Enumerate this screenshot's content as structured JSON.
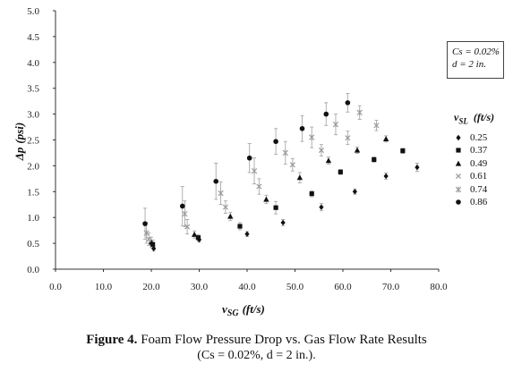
{
  "chart_data": {
    "type": "scatter",
    "x_axis": {
      "label_main": "v",
      "label_sub": "SG",
      "label_unit": "(ft/s)",
      "min": 0,
      "max": 80,
      "step": 10,
      "ticks": [
        "0.0",
        "10.0",
        "20.0",
        "30.0",
        "40.0",
        "50.0",
        "60.0",
        "70.0",
        "80.0"
      ]
    },
    "y_axis": {
      "label_main": "Δp",
      "label_unit": "(psi)",
      "min": 0,
      "max": 5,
      "step": 0.5,
      "ticks": [
        "0.0",
        "0.5",
        "1.0",
        "1.5",
        "2.0",
        "2.5",
        "3.0",
        "3.5",
        "4.0",
        "4.5",
        "5.0"
      ]
    },
    "grid": false,
    "legend_position": "right",
    "note": {
      "line1": "Cs = 0.02%",
      "line2": "d = 2 in."
    },
    "legend_title_main": "v",
    "legend_title_sub": "SL",
    "legend_title_unit": "(ft/s)",
    "series": [
      {
        "name": "0.25",
        "marker": "diamond",
        "color": "#111111",
        "points": [
          [
            20.5,
            0.4
          ],
          [
            30.0,
            0.57
          ],
          [
            40.0,
            0.68
          ],
          [
            47.5,
            0.9
          ],
          [
            55.5,
            1.2
          ],
          [
            62.5,
            1.5
          ],
          [
            69.0,
            1.8
          ],
          [
            75.5,
            1.97
          ]
        ],
        "errors": [
          0.05,
          0.05,
          0.05,
          0.06,
          0.07,
          0.05,
          0.06,
          0.08
        ]
      },
      {
        "name": "0.37",
        "marker": "square",
        "color": "#111111",
        "points": [
          [
            20.3,
            0.48
          ],
          [
            29.8,
            0.61
          ],
          [
            38.5,
            0.83
          ],
          [
            46.0,
            1.19
          ],
          [
            53.5,
            1.46
          ],
          [
            59.5,
            1.88
          ],
          [
            66.5,
            2.12
          ],
          [
            72.5,
            2.29
          ]
        ],
        "errors": [
          0.08,
          0.06,
          0.07,
          0.12,
          0.06,
          0.05,
          0.05,
          0.05
        ]
      },
      {
        "name": "0.49",
        "marker": "triangle",
        "color": "#111111",
        "points": [
          [
            20.0,
            0.52
          ],
          [
            29.0,
            0.67
          ],
          [
            36.5,
            1.02
          ],
          [
            44.0,
            1.35
          ],
          [
            51.0,
            1.77
          ],
          [
            57.0,
            2.1
          ],
          [
            63.0,
            2.3
          ],
          [
            69.0,
            2.52
          ]
        ],
        "errors": [
          0.1,
          0.07,
          0.08,
          0.08,
          0.1,
          0.07,
          0.06,
          0.06
        ]
      },
      {
        "name": "0.61",
        "marker": "x",
        "color": "#999999",
        "points": [
          [
            19.5,
            0.58
          ],
          [
            27.5,
            0.82
          ],
          [
            35.5,
            1.2
          ],
          [
            42.5,
            1.6
          ],
          [
            49.5,
            2.02
          ],
          [
            55.5,
            2.3
          ],
          [
            61.0,
            2.54
          ],
          [
            67.0,
            2.78
          ]
        ],
        "errors": [
          0.12,
          0.14,
          0.12,
          0.15,
          0.12,
          0.11,
          0.13,
          0.1
        ]
      },
      {
        "name": "0.74",
        "marker": "star",
        "color": "#999999",
        "points": [
          [
            19.0,
            0.7
          ],
          [
            27.0,
            1.07
          ],
          [
            34.5,
            1.47
          ],
          [
            41.5,
            1.9
          ],
          [
            48.0,
            2.25
          ],
          [
            53.5,
            2.55
          ],
          [
            58.5,
            2.8
          ],
          [
            63.5,
            3.03
          ]
        ],
        "errors": [
          0.2,
          0.25,
          0.22,
          0.25,
          0.22,
          0.2,
          0.2,
          0.13
        ]
      },
      {
        "name": "0.86",
        "marker": "circle",
        "color": "#111111",
        "points": [
          [
            18.7,
            0.88
          ],
          [
            26.5,
            1.22
          ],
          [
            33.5,
            1.7
          ],
          [
            40.5,
            2.15
          ],
          [
            46.0,
            2.47
          ],
          [
            51.5,
            2.72
          ],
          [
            56.5,
            3.0
          ],
          [
            61.0,
            3.22
          ]
        ],
        "errors": [
          0.3,
          0.38,
          0.35,
          0.28,
          0.25,
          0.25,
          0.22,
          0.18
        ]
      }
    ]
  },
  "caption": {
    "prefix": "Figure 4.",
    "line1_rest": " Foam Flow Pressure Drop vs. Gas Flow Rate Results",
    "line2": "(Cs = 0.02%, d = 2 in.)."
  }
}
